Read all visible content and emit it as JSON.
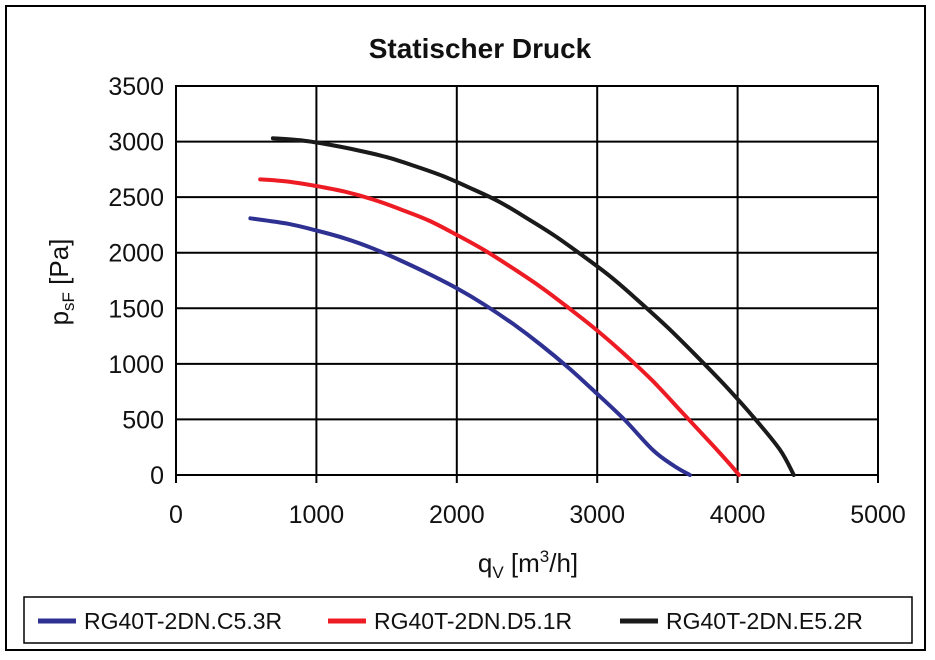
{
  "chart_data": {
    "type": "line",
    "title": "Statischer Druck",
    "xlabel": {
      "main": "q",
      "sub": "V",
      "unit_pre": " [m",
      "sup": "3",
      "unit_post": "/h]"
    },
    "ylabel": {
      "main": "p",
      "sub": "sF",
      "unit": " [Pa]"
    },
    "xlim": [
      0,
      5000
    ],
    "ylim": [
      0,
      3500
    ],
    "xticks": [
      "0",
      "1000",
      "2000",
      "3000",
      "4000",
      "5000"
    ],
    "yticks": [
      "0",
      "500",
      "1000",
      "1500",
      "2000",
      "2500",
      "3000",
      "3500"
    ],
    "grid": true,
    "legend_position": "bottom",
    "series": [
      {
        "name": "RG40T-2DN.C5.3R",
        "color": "#2e3192",
        "x": [
          530,
          800,
          1000,
          1200,
          1400,
          1600,
          1800,
          2000,
          2200,
          2400,
          2600,
          2800,
          3000,
          3200,
          3400,
          3550,
          3660
        ],
        "y": [
          2310,
          2260,
          2200,
          2130,
          2040,
          1930,
          1810,
          1680,
          1530,
          1360,
          1170,
          960,
          730,
          490,
          220,
          80,
          0
        ]
      },
      {
        "name": "RG40T-2DN.D5.1R",
        "color": "#ed1c24",
        "x": [
          600,
          800,
          1000,
          1200,
          1400,
          1600,
          1800,
          2000,
          2200,
          2400,
          2600,
          2800,
          3000,
          3200,
          3400,
          3600,
          3800,
          3950,
          4010
        ],
        "y": [
          2660,
          2640,
          2600,
          2550,
          2480,
          2390,
          2290,
          2160,
          2020,
          1860,
          1690,
          1500,
          1300,
          1080,
          840,
          570,
          300,
          90,
          0
        ]
      },
      {
        "name": "RG40T-2DN.E5.2R",
        "color": "#1a1a1a",
        "x": [
          690,
          900,
          1100,
          1300,
          1500,
          1700,
          1900,
          2100,
          2300,
          2500,
          2700,
          2900,
          3100,
          3300,
          3500,
          3700,
          3900,
          4100,
          4300,
          4400
        ],
        "y": [
          3030,
          3010,
          2970,
          2920,
          2860,
          2780,
          2690,
          2580,
          2460,
          2310,
          2150,
          1970,
          1780,
          1560,
          1330,
          1080,
          820,
          540,
          230,
          0
        ]
      }
    ]
  }
}
